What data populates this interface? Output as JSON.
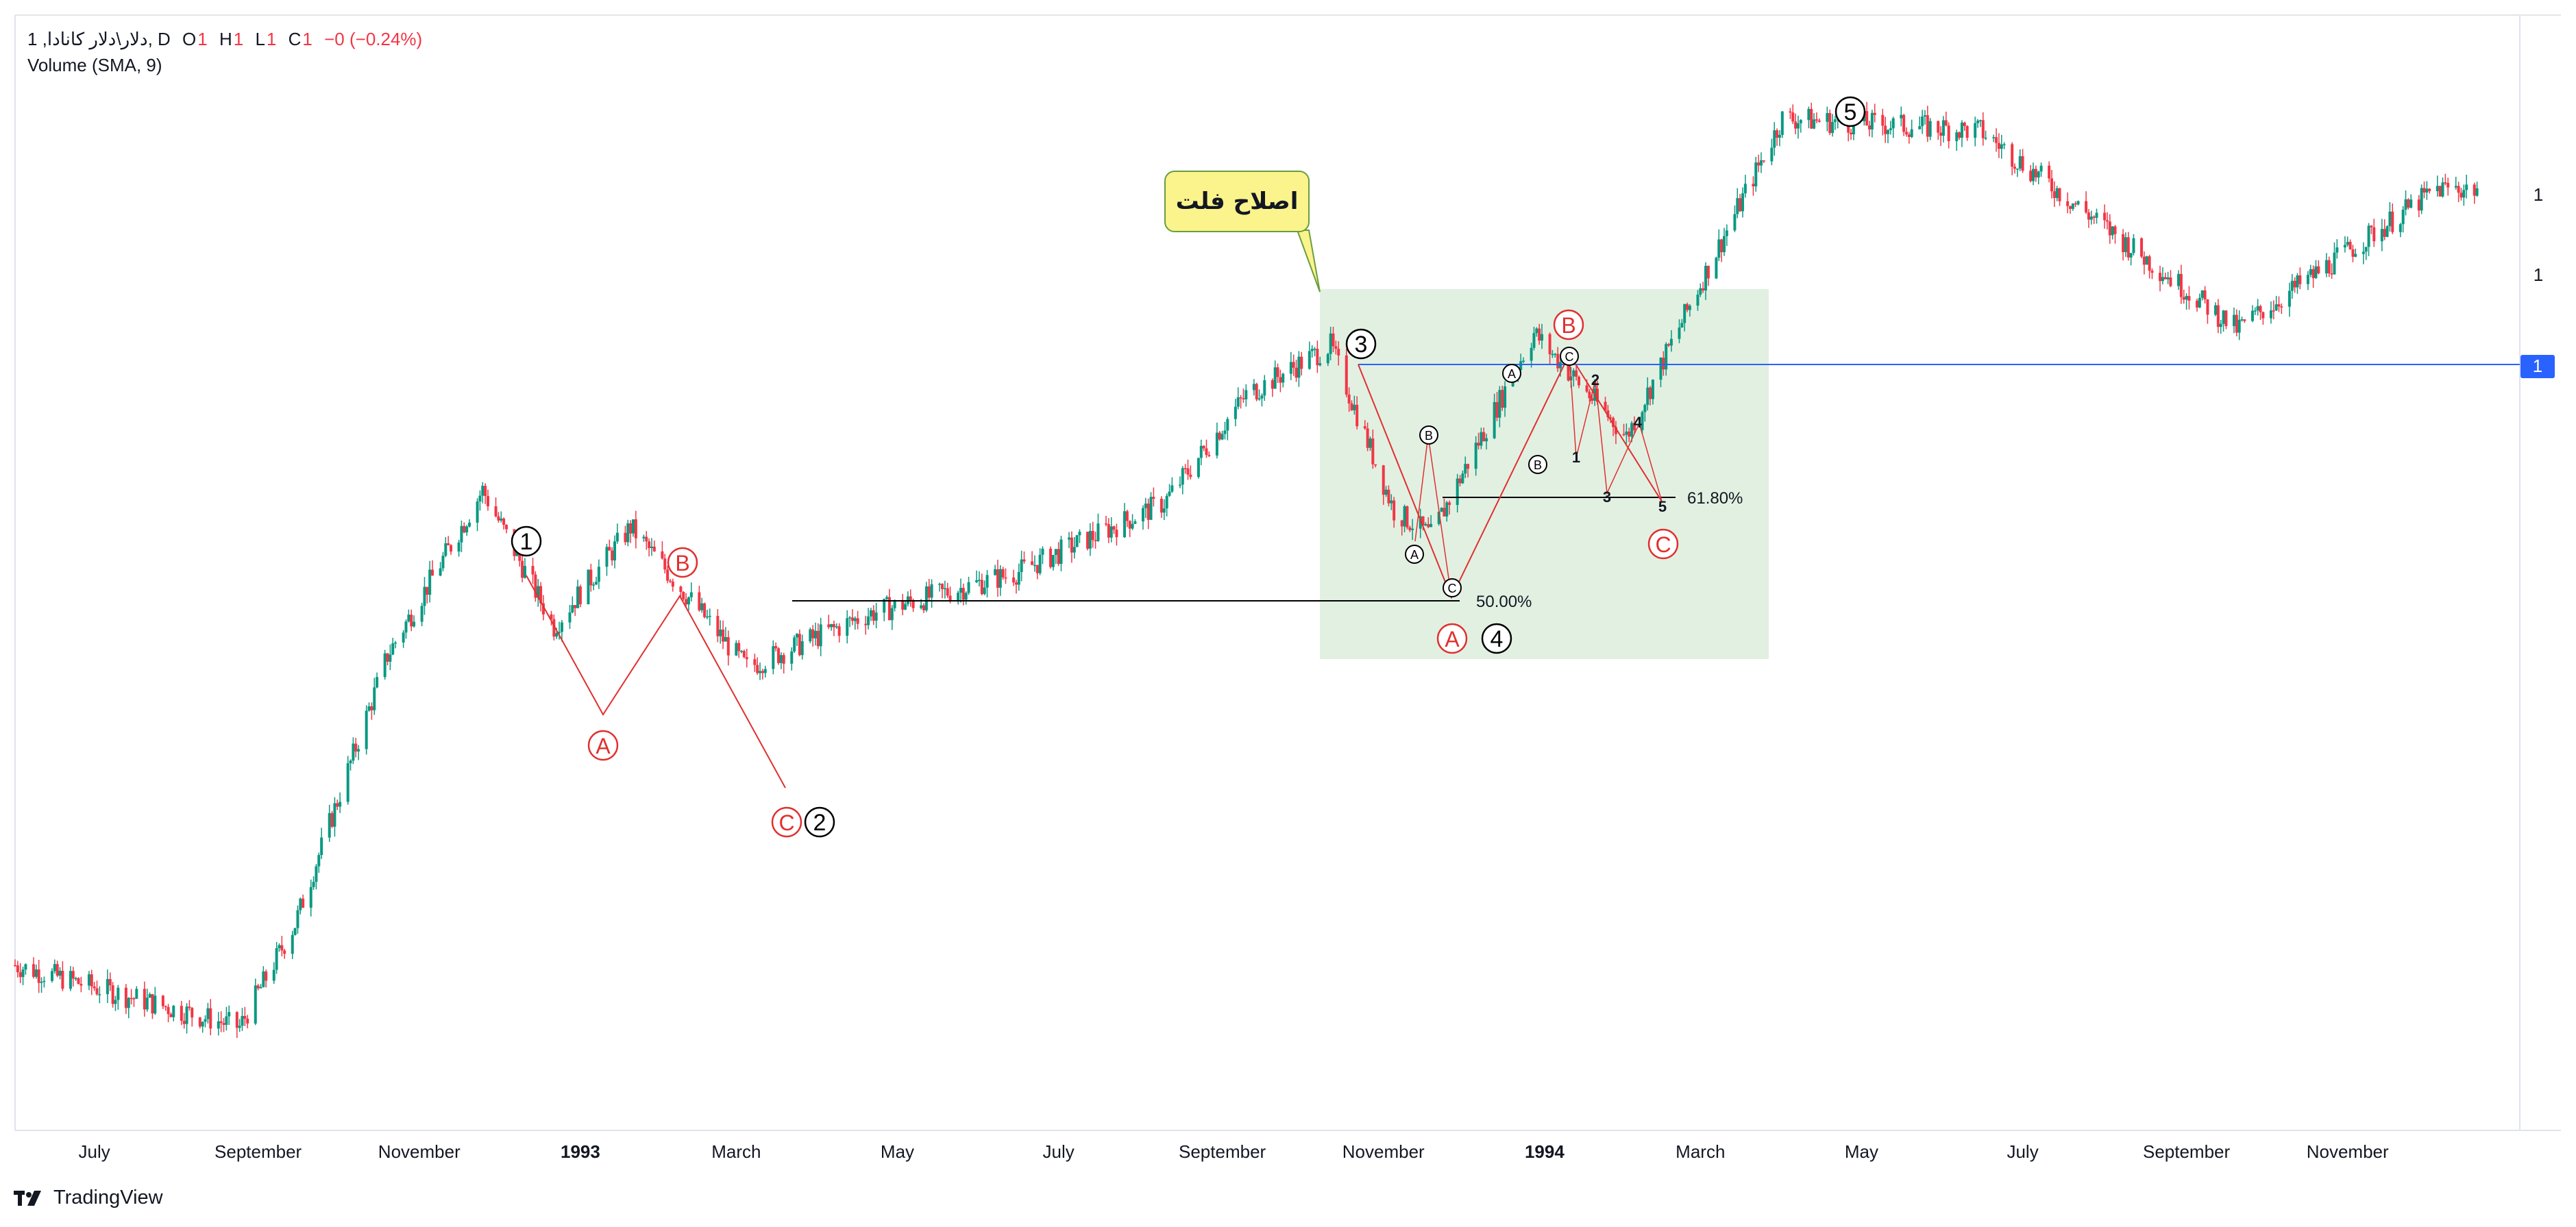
{
  "legend": {
    "symbol": "1 ,دلار\\دلار کانادا, D",
    "open_label": "O",
    "open_value": "1",
    "high_label": "H",
    "high_value": "1",
    "low_label": "L",
    "low_value": "1",
    "close_label": "C",
    "close_value": "1",
    "change": "−0 (−0.24%)",
    "volume_label": "Volume (SMA, 9)"
  },
  "colors": {
    "up": "#089981",
    "down": "#f23645",
    "wave_line": "#e0302f",
    "horizontal_line": "#2962ff",
    "zone_fill": "#e2f0e2",
    "callout_fill": "#fbf38c",
    "callout_border": "#6a9d40"
  },
  "icons": {
    "brand": "tradingview-logo-icon"
  },
  "annotations": {
    "callout_text": "اصلاح فلت",
    "fib_50": "50.00%",
    "fib_618": "61.80%",
    "waves_main": [
      "1",
      "2",
      "3",
      "4",
      "5"
    ],
    "waves_abc": [
      "A",
      "B",
      "C"
    ],
    "sub_numbers": [
      "1",
      "2",
      "3",
      "4",
      "5"
    ]
  },
  "price_axis": {
    "labels": [
      "1",
      "1",
      "1"
    ]
  },
  "branding": "TradingView",
  "chart_data": {
    "type": "candlestick",
    "symbol": "دلار\\دلار کانادا",
    "interval": "D",
    "x_axis_labels": [
      "July",
      "September",
      "November",
      "1993",
      "March",
      "May",
      "July",
      "September",
      "November",
      "1994",
      "March",
      "May",
      "July",
      "September",
      "November"
    ],
    "x_range": [
      "1992-06",
      "1994-12"
    ],
    "y_axis_note": "price tick labels shown as 1",
    "y_price_guide": [
      {
        "date": "1992-06-01",
        "price": 1.18
      },
      {
        "date": "1992-08-25",
        "price": 1.165
      },
      {
        "date": "1992-09-15",
        "price": 1.19
      },
      {
        "date": "1992-10-20",
        "price": 1.255
      },
      {
        "date": "1992-11-25",
        "price": 1.295
      },
      {
        "date": "1992-12-22",
        "price": 1.262
      },
      {
        "date": "1993-01-20",
        "price": 1.286
      },
      {
        "date": "1993-03-05",
        "price": 1.252
      },
      {
        "date": "1993-04-20",
        "price": 1.265
      },
      {
        "date": "1993-06-15",
        "price": 1.275
      },
      {
        "date": "1993-08-10",
        "price": 1.292
      },
      {
        "date": "1993-09-10",
        "price": 1.318
      },
      {
        "date": "1993-10-12",
        "price": 1.33
      },
      {
        "date": "1993-11-05",
        "price": 1.29
      },
      {
        "date": "1993-11-19",
        "price": 1.284
      },
      {
        "date": "1993-12-28",
        "price": 1.333
      },
      {
        "date": "1994-02-01",
        "price": 1.308
      },
      {
        "date": "1994-03-01",
        "price": 1.345
      },
      {
        "date": "1994-04-01",
        "price": 1.385
      },
      {
        "date": "1994-06-15",
        "price": 1.382
      },
      {
        "date": "1994-09-20",
        "price": 1.334
      },
      {
        "date": "1994-12-05",
        "price": 1.368
      }
    ],
    "horizontal_levels": [
      {
        "type": "support_line",
        "start": "1993-03-10",
        "price": 1.293,
        "label": "50.00%"
      },
      {
        "type": "fib_line",
        "start": "1993-11-25",
        "price": 1.308,
        "label": "61.80%"
      },
      {
        "type": "horizontal_ray",
        "start": "1993-10-05",
        "price": 1.333,
        "axis_label": "1"
      }
    ],
    "wave_labels": [
      {
        "label": "1",
        "date": "1992-12-01",
        "level": "peak"
      },
      {
        "label": "A",
        "date": "1992-12-22",
        "level": "trough"
      },
      {
        "label": "B",
        "date": "1993-01-20",
        "level": "peak"
      },
      {
        "label": "C",
        "date": "1993-03-05",
        "level": "trough"
      },
      {
        "label": "2",
        "date": "1993-03-05",
        "level": "trough"
      },
      {
        "label": "3",
        "date": "1993-10-12",
        "level": "peak"
      },
      {
        "label": "A",
        "date": "1993-11-19",
        "level": "trough"
      },
      {
        "label": "4",
        "date": "1993-11-19",
        "level": "trough"
      },
      {
        "label": "B",
        "date": "1993-12-28",
        "level": "peak"
      },
      {
        "label": "C",
        "date": "1994-02-01",
        "level": "trough"
      },
      {
        "label": "5",
        "date": "1994-04-01",
        "level": "peak"
      }
    ],
    "zone": {
      "start": "1993-09-10",
      "end": "1994-02-25",
      "label": "اصلاح فلت"
    },
    "series": [
      {
        "name": "Volume (SMA, 9)",
        "values": []
      }
    ]
  }
}
